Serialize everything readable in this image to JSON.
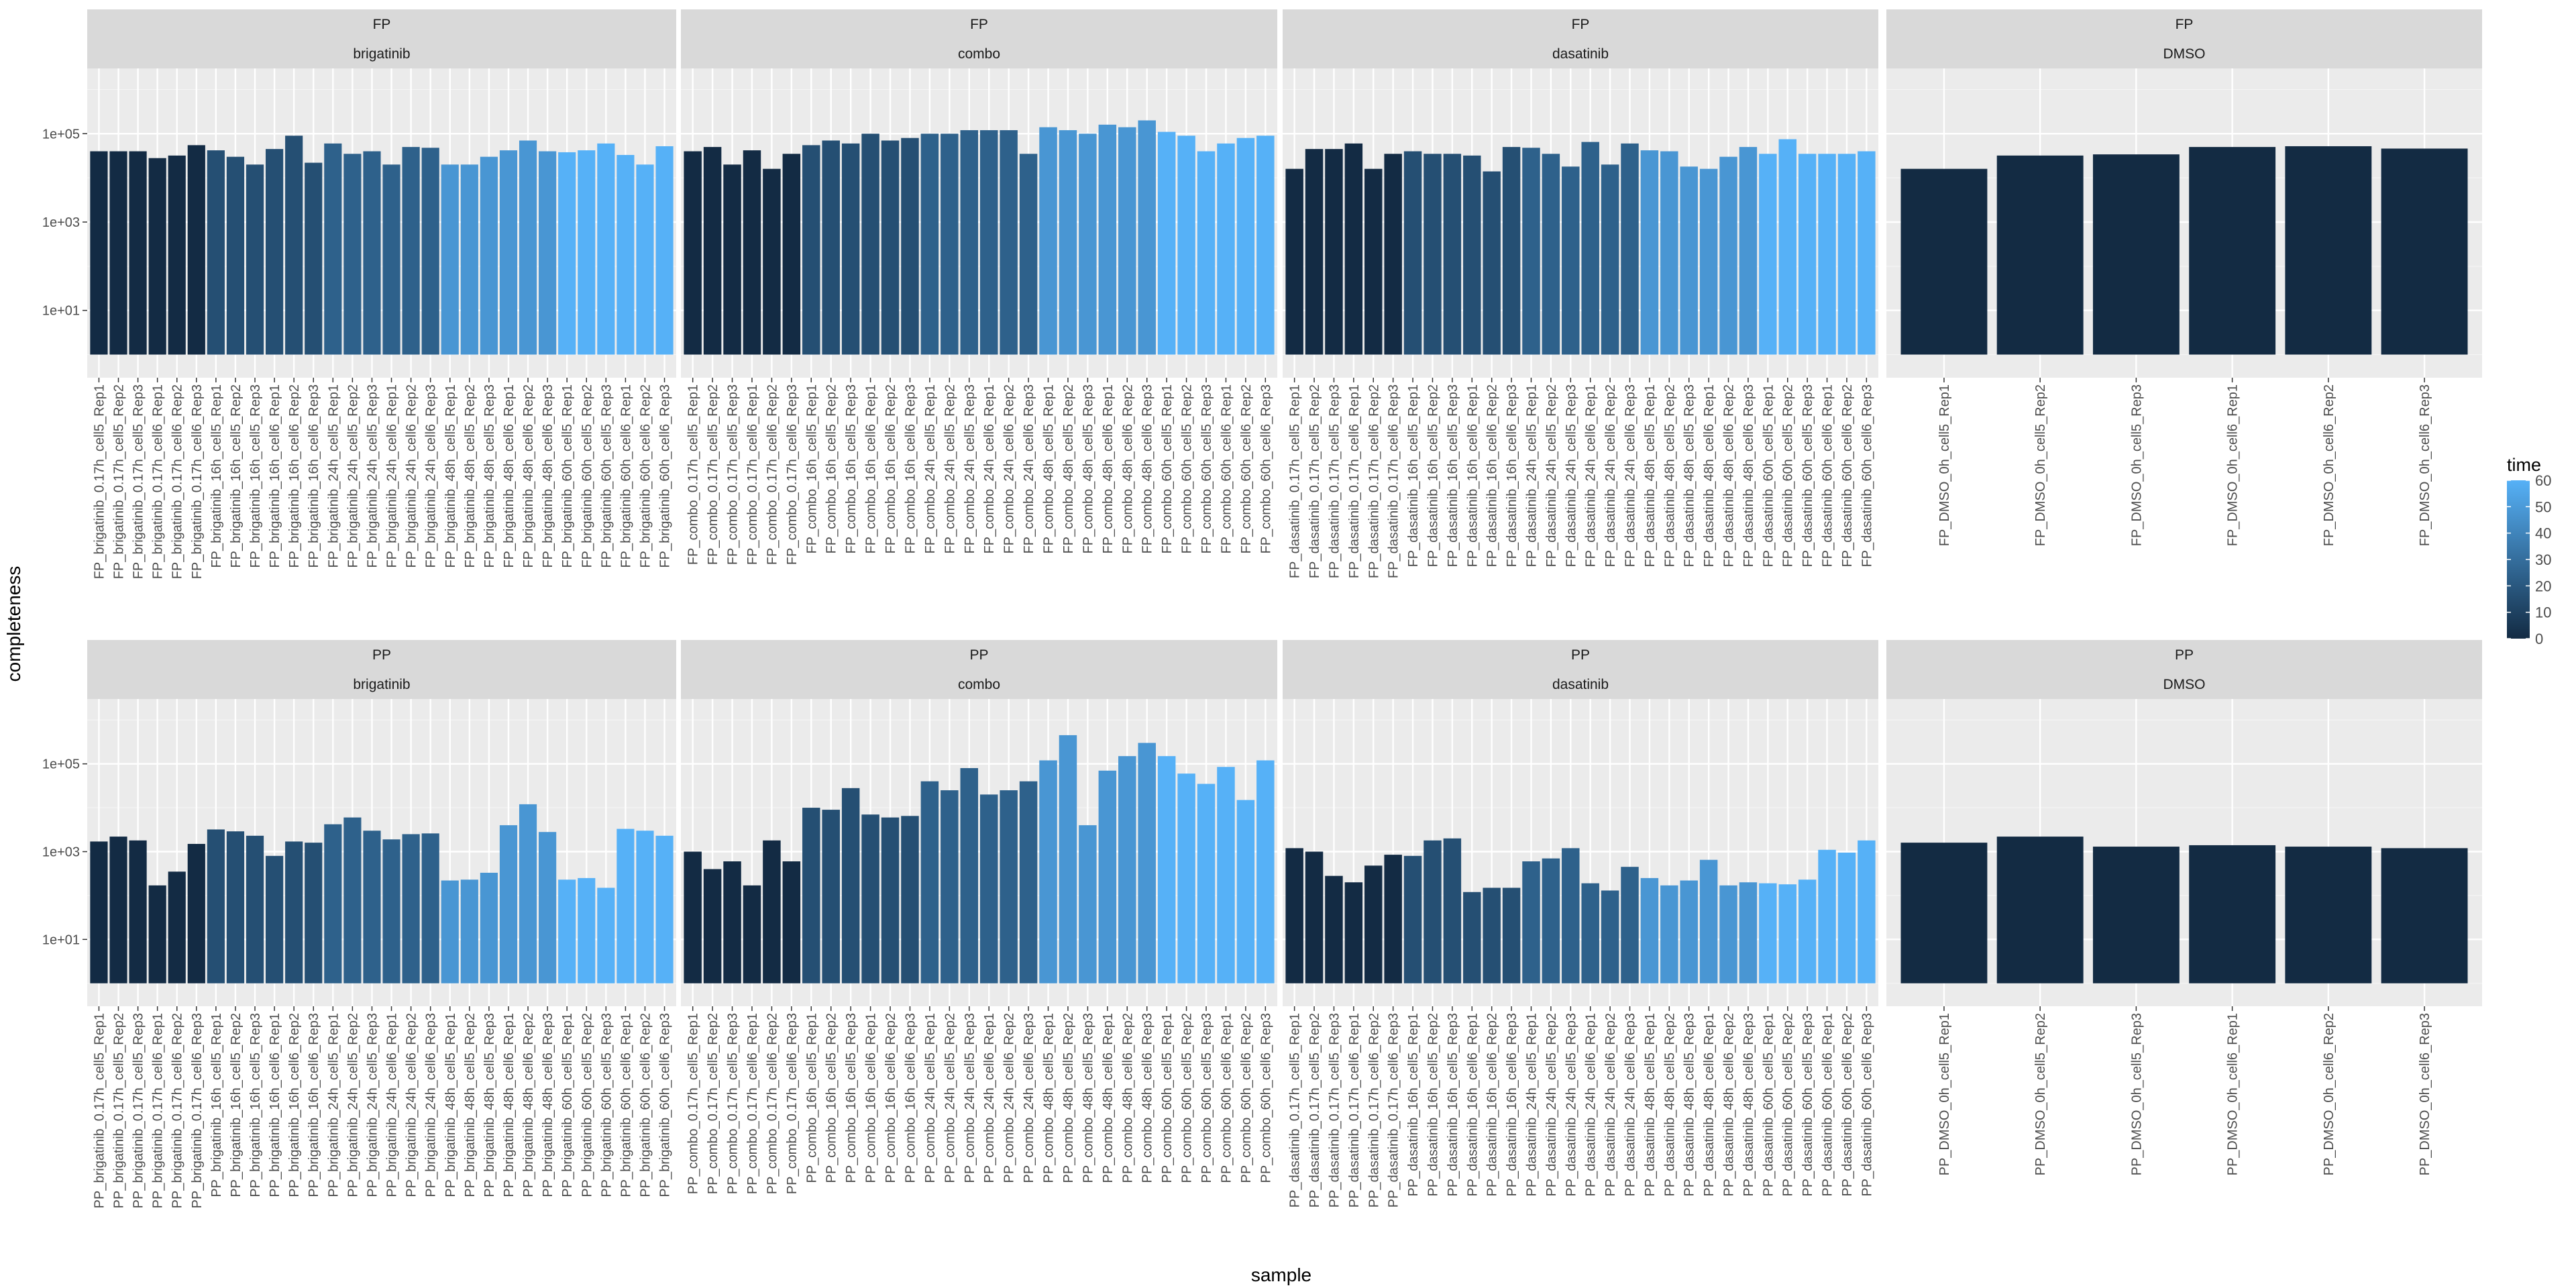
{
  "chart_data": {
    "type": "bar",
    "xlabel": "sample",
    "ylabel": "completeness",
    "y_scale": "log10",
    "ylim": [
      0.3,
      3000000
    ],
    "y_ticks": [
      {
        "value": 10,
        "label": "1e+01"
      },
      {
        "value": 1000,
        "label": "1e+03"
      },
      {
        "value": 100000,
        "label": "1e+05"
      }
    ],
    "legend": {
      "title": "time",
      "labels": [
        "60",
        "50",
        "40",
        "30",
        "20",
        "10",
        "0"
      ],
      "min": 0,
      "max": 60,
      "low_color": "#132B43",
      "high_color": "#56B1F7"
    },
    "facet_rows": [
      "FP",
      "PP"
    ],
    "facet_cols": [
      "brigatinib",
      "combo",
      "dasatinib",
      "DMSO"
    ],
    "panels": [
      {
        "row": "FP",
        "col": "brigatinib",
        "categories": [
          "FP_brigatinib_0.17h_cell5_Rep1",
          "FP_brigatinib_0.17h_cell5_Rep2",
          "FP_brigatinib_0.17h_cell5_Rep3",
          "FP_brigatinib_0.17h_cell6_Rep1",
          "FP_brigatinib_0.17h_cell6_Rep2",
          "FP_brigatinib_0.17h_cell6_Rep3",
          "FP_brigatinib_16h_cell5_Rep1",
          "FP_brigatinib_16h_cell5_Rep2",
          "FP_brigatinib_16h_cell5_Rep3",
          "FP_brigatinib_16h_cell6_Rep1",
          "FP_brigatinib_16h_cell6_Rep2",
          "FP_brigatinib_16h_cell6_Rep3",
          "FP_brigatinib_24h_cell5_Rep1",
          "FP_brigatinib_24h_cell5_Rep2",
          "FP_brigatinib_24h_cell5_Rep3",
          "FP_brigatinib_24h_cell6_Rep1",
          "FP_brigatinib_24h_cell6_Rep2",
          "FP_brigatinib_24h_cell6_Rep3",
          "FP_brigatinib_48h_cell5_Rep1",
          "FP_brigatinib_48h_cell5_Rep2",
          "FP_brigatinib_48h_cell5_Rep3",
          "FP_brigatinib_48h_cell6_Rep1",
          "FP_brigatinib_48h_cell6_Rep2",
          "FP_brigatinib_48h_cell6_Rep3",
          "FP_brigatinib_60h_cell5_Rep1",
          "FP_brigatinib_60h_cell5_Rep2",
          "FP_brigatinib_60h_cell5_Rep3",
          "FP_brigatinib_60h_cell6_Rep1",
          "FP_brigatinib_60h_cell6_Rep2",
          "FP_brigatinib_60h_cell6_Rep3"
        ],
        "times": [
          0.17,
          0.17,
          0.17,
          0.17,
          0.17,
          0.17,
          16,
          16,
          16,
          16,
          16,
          16,
          24,
          24,
          24,
          24,
          24,
          24,
          48,
          48,
          48,
          48,
          48,
          48,
          60,
          60,
          60,
          60,
          60,
          60
        ],
        "values": [
          40000,
          40000,
          40000,
          28000,
          32000,
          55000,
          42000,
          30000,
          20000,
          45000,
          90000,
          22000,
          60000,
          35000,
          40000,
          20000,
          50000,
          48000,
          20000,
          20000,
          30000,
          42000,
          70000,
          40000,
          38000,
          42000,
          60000,
          33000,
          20000,
          52000
        ]
      },
      {
        "row": "FP",
        "col": "combo",
        "categories": [
          "FP_combo_0.17h_cell5_Rep1",
          "FP_combo_0.17h_cell5_Rep2",
          "FP_combo_0.17h_cell5_Rep3",
          "FP_combo_0.17h_cell6_Rep1",
          "FP_combo_0.17h_cell6_Rep2",
          "FP_combo_0.17h_cell6_Rep3",
          "FP_combo_16h_cell5_Rep1",
          "FP_combo_16h_cell5_Rep2",
          "FP_combo_16h_cell5_Rep3",
          "FP_combo_16h_cell6_Rep1",
          "FP_combo_16h_cell6_Rep2",
          "FP_combo_16h_cell6_Rep3",
          "FP_combo_24h_cell5_Rep1",
          "FP_combo_24h_cell5_Rep2",
          "FP_combo_24h_cell5_Rep3",
          "FP_combo_24h_cell6_Rep1",
          "FP_combo_24h_cell6_Rep2",
          "FP_combo_24h_cell6_Rep3",
          "FP_combo_48h_cell5_Rep1",
          "FP_combo_48h_cell5_Rep2",
          "FP_combo_48h_cell5_Rep3",
          "FP_combo_48h_cell6_Rep1",
          "FP_combo_48h_cell6_Rep2",
          "FP_combo_48h_cell6_Rep3",
          "FP_combo_60h_cell5_Rep1",
          "FP_combo_60h_cell5_Rep2",
          "FP_combo_60h_cell5_Rep3",
          "FP_combo_60h_cell6_Rep1",
          "FP_combo_60h_cell6_Rep2",
          "FP_combo_60h_cell6_Rep3"
        ],
        "times": [
          0.17,
          0.17,
          0.17,
          0.17,
          0.17,
          0.17,
          16,
          16,
          16,
          16,
          16,
          16,
          24,
          24,
          24,
          24,
          24,
          24,
          48,
          48,
          48,
          48,
          48,
          48,
          60,
          60,
          60,
          60,
          60,
          60
        ],
        "values": [
          40000,
          50000,
          20000,
          42000,
          16000,
          35000,
          55000,
          70000,
          60000,
          100000,
          70000,
          80000,
          100000,
          100000,
          120000,
          120000,
          120000,
          35000,
          140000,
          120000,
          100000,
          160000,
          140000,
          200000,
          110000,
          90000,
          40000,
          60000,
          80000,
          90000
        ]
      },
      {
        "row": "FP",
        "col": "dasatinib",
        "categories": [
          "FP_dasatinib_0.17h_cell5_Rep1",
          "FP_dasatinib_0.17h_cell5_Rep2",
          "FP_dasatinib_0.17h_cell5_Rep3",
          "FP_dasatinib_0.17h_cell6_Rep1",
          "FP_dasatinib_0.17h_cell6_Rep2",
          "FP_dasatinib_0.17h_cell6_Rep3",
          "FP_dasatinib_16h_cell5_Rep1",
          "FP_dasatinib_16h_cell5_Rep2",
          "FP_dasatinib_16h_cell5_Rep3",
          "FP_dasatinib_16h_cell6_Rep1",
          "FP_dasatinib_16h_cell6_Rep2",
          "FP_dasatinib_16h_cell6_Rep3",
          "FP_dasatinib_24h_cell5_Rep1",
          "FP_dasatinib_24h_cell5_Rep2",
          "FP_dasatinib_24h_cell5_Rep3",
          "FP_dasatinib_24h_cell6_Rep1",
          "FP_dasatinib_24h_cell6_Rep2",
          "FP_dasatinib_24h_cell6_Rep3",
          "FP_dasatinib_48h_cell5_Rep1",
          "FP_dasatinib_48h_cell5_Rep2",
          "FP_dasatinib_48h_cell5_Rep3",
          "FP_dasatinib_48h_cell6_Rep1",
          "FP_dasatinib_48h_cell6_Rep2",
          "FP_dasatinib_48h_cell6_Rep3",
          "FP_dasatinib_60h_cell5_Rep1",
          "FP_dasatinib_60h_cell5_Rep2",
          "FP_dasatinib_60h_cell5_Rep3",
          "FP_dasatinib_60h_cell6_Rep1",
          "FP_dasatinib_60h_cell6_Rep2",
          "FP_dasatinib_60h_cell6_Rep3"
        ],
        "times": [
          0.17,
          0.17,
          0.17,
          0.17,
          0.17,
          0.17,
          16,
          16,
          16,
          16,
          16,
          16,
          24,
          24,
          24,
          24,
          24,
          24,
          48,
          48,
          48,
          48,
          48,
          48,
          60,
          60,
          60,
          60,
          60,
          60
        ],
        "values": [
          16000,
          45000,
          45000,
          60000,
          16000,
          35000,
          40000,
          35000,
          35000,
          32000,
          14000,
          50000,
          48000,
          35000,
          18000,
          65000,
          20000,
          60000,
          42000,
          40000,
          18000,
          16000,
          30000,
          50000,
          35000,
          75000,
          35000,
          35000,
          35000,
          40000
        ]
      },
      {
        "row": "FP",
        "col": "DMSO",
        "categories": [
          "FP_DMSO_0h_cell5_Rep1",
          "FP_DMSO_0h_cell5_Rep2",
          "FP_DMSO_0h_cell5_Rep3",
          "FP_DMSO_0h_cell6_Rep1",
          "FP_DMSO_0h_cell6_Rep2",
          "FP_DMSO_0h_cell6_Rep3"
        ],
        "times": [
          0,
          0,
          0,
          0,
          0,
          0
        ],
        "values": [
          16000,
          32000,
          34000,
          50000,
          52000,
          46000
        ]
      },
      {
        "row": "PP",
        "col": "brigatinib",
        "categories": [
          "PP_brigatinib_0.17h_cell5_Rep1",
          "PP_brigatinib_0.17h_cell5_Rep2",
          "PP_brigatinib_0.17h_cell5_Rep3",
          "PP_brigatinib_0.17h_cell6_Rep1",
          "PP_brigatinib_0.17h_cell6_Rep2",
          "PP_brigatinib_0.17h_cell6_Rep3",
          "PP_brigatinib_16h_cell5_Rep1",
          "PP_brigatinib_16h_cell5_Rep2",
          "PP_brigatinib_16h_cell5_Rep3",
          "PP_brigatinib_16h_cell6_Rep1",
          "PP_brigatinib_16h_cell6_Rep2",
          "PP_brigatinib_16h_cell6_Rep3",
          "PP_brigatinib_24h_cell5_Rep1",
          "PP_brigatinib_24h_cell5_Rep2",
          "PP_brigatinib_24h_cell5_Rep3",
          "PP_brigatinib_24h_cell6_Rep1",
          "PP_brigatinib_24h_cell6_Rep2",
          "PP_brigatinib_24h_cell6_Rep3",
          "PP_brigatinib_48h_cell5_Rep1",
          "PP_brigatinib_48h_cell5_Rep2",
          "PP_brigatinib_48h_cell5_Rep3",
          "PP_brigatinib_48h_cell6_Rep1",
          "PP_brigatinib_48h_cell6_Rep2",
          "PP_brigatinib_48h_cell6_Rep3",
          "PP_brigatinib_60h_cell5_Rep1",
          "PP_brigatinib_60h_cell5_Rep2",
          "PP_brigatinib_60h_cell5_Rep3",
          "PP_brigatinib_60h_cell6_Rep1",
          "PP_brigatinib_60h_cell6_Rep2",
          "PP_brigatinib_60h_cell6_Rep3"
        ],
        "times": [
          0.17,
          0.17,
          0.17,
          0.17,
          0.17,
          0.17,
          16,
          16,
          16,
          16,
          16,
          16,
          24,
          24,
          24,
          24,
          24,
          24,
          48,
          48,
          48,
          48,
          48,
          48,
          60,
          60,
          60,
          60,
          60,
          60
        ],
        "values": [
          1700,
          2200,
          1800,
          170,
          350,
          1500,
          3200,
          2900,
          2300,
          800,
          1700,
          1600,
          4200,
          6000,
          3000,
          1900,
          2500,
          2600,
          220,
          230,
          330,
          4000,
          12000,
          2800,
          230,
          250,
          150,
          3300,
          3000,
          2300
        ]
      },
      {
        "row": "PP",
        "col": "combo",
        "categories": [
          "PP_combo_0.17h_cell5_Rep1",
          "PP_combo_0.17h_cell5_Rep2",
          "PP_combo_0.17h_cell5_Rep3",
          "PP_combo_0.17h_cell6_Rep1",
          "PP_combo_0.17h_cell6_Rep2",
          "PP_combo_0.17h_cell6_Rep3",
          "PP_combo_16h_cell5_Rep1",
          "PP_combo_16h_cell5_Rep2",
          "PP_combo_16h_cell5_Rep3",
          "PP_combo_16h_cell6_Rep1",
          "PP_combo_16h_cell6_Rep2",
          "PP_combo_16h_cell6_Rep3",
          "PP_combo_24h_cell5_Rep1",
          "PP_combo_24h_cell5_Rep2",
          "PP_combo_24h_cell5_Rep3",
          "PP_combo_24h_cell6_Rep1",
          "PP_combo_24h_cell6_Rep2",
          "PP_combo_24h_cell6_Rep3",
          "PP_combo_48h_cell5_Rep1",
          "PP_combo_48h_cell5_Rep2",
          "PP_combo_48h_cell5_Rep3",
          "PP_combo_48h_cell6_Rep1",
          "PP_combo_48h_cell6_Rep2",
          "PP_combo_48h_cell6_Rep3",
          "PP_combo_60h_cell5_Rep1",
          "PP_combo_60h_cell5_Rep2",
          "PP_combo_60h_cell5_Rep3",
          "PP_combo_60h_cell6_Rep1",
          "PP_combo_60h_cell6_Rep2",
          "PP_combo_60h_cell6_Rep3"
        ],
        "times": [
          0.17,
          0.17,
          0.17,
          0.17,
          0.17,
          0.17,
          16,
          16,
          16,
          16,
          16,
          16,
          24,
          24,
          24,
          24,
          24,
          24,
          48,
          48,
          48,
          48,
          48,
          48,
          60,
          60,
          60,
          60,
          60,
          60
        ],
        "values": [
          1000,
          400,
          600,
          170,
          1800,
          600,
          10000,
          9000,
          28000,
          7000,
          6000,
          6500,
          40000,
          25000,
          80000,
          20000,
          25000,
          40000,
          120000,
          450000,
          4000,
          70000,
          150000,
          300000,
          150000,
          60000,
          35000,
          85000,
          15000,
          120000
        ]
      },
      {
        "row": "PP",
        "col": "dasatinib",
        "categories": [
          "PP_dasatinib_0.17h_cell5_Rep1",
          "PP_dasatinib_0.17h_cell5_Rep2",
          "PP_dasatinib_0.17h_cell5_Rep3",
          "PP_dasatinib_0.17h_cell6_Rep1",
          "PP_dasatinib_0.17h_cell6_Rep2",
          "PP_dasatinib_0.17h_cell6_Rep3",
          "PP_dasatinib_16h_cell5_Rep1",
          "PP_dasatinib_16h_cell5_Rep2",
          "PP_dasatinib_16h_cell5_Rep3",
          "PP_dasatinib_16h_cell6_Rep1",
          "PP_dasatinib_16h_cell6_Rep2",
          "PP_dasatinib_16h_cell6_Rep3",
          "PP_dasatinib_24h_cell5_Rep1",
          "PP_dasatinib_24h_cell5_Rep2",
          "PP_dasatinib_24h_cell5_Rep3",
          "PP_dasatinib_24h_cell6_Rep1",
          "PP_dasatinib_24h_cell6_Rep2",
          "PP_dasatinib_24h_cell6_Rep3",
          "PP_dasatinib_48h_cell5_Rep1",
          "PP_dasatinib_48h_cell5_Rep2",
          "PP_dasatinib_48h_cell5_Rep3",
          "PP_dasatinib_48h_cell6_Rep1",
          "PP_dasatinib_48h_cell6_Rep2",
          "PP_dasatinib_48h_cell6_Rep3",
          "PP_dasatinib_60h_cell5_Rep1",
          "PP_dasatinib_60h_cell5_Rep2",
          "PP_dasatinib_60h_cell5_Rep3",
          "PP_dasatinib_60h_cell6_Rep1",
          "PP_dasatinib_60h_cell6_Rep2",
          "PP_dasatinib_60h_cell6_Rep3"
        ],
        "times": [
          0.17,
          0.17,
          0.17,
          0.17,
          0.17,
          0.17,
          16,
          16,
          16,
          16,
          16,
          16,
          24,
          24,
          24,
          24,
          24,
          24,
          48,
          48,
          48,
          48,
          48,
          48,
          60,
          60,
          60,
          60,
          60,
          60
        ],
        "values": [
          1200,
          1000,
          280,
          200,
          480,
          850,
          800,
          1800,
          2000,
          120,
          150,
          150,
          600,
          700,
          1200,
          190,
          130,
          450,
          250,
          170,
          220,
          650,
          170,
          200,
          190,
          180,
          230,
          1100,
          950,
          1800
        ]
      },
      {
        "row": "PP",
        "col": "DMSO",
        "categories": [
          "PP_DMSO_0h_cell5_Rep1",
          "PP_DMSO_0h_cell5_Rep2",
          "PP_DMSO_0h_cell5_Rep3",
          "PP_DMSO_0h_cell6_Rep1",
          "PP_DMSO_0h_cell6_Rep2",
          "PP_DMSO_0h_cell6_Rep3"
        ],
        "times": [
          0,
          0,
          0,
          0,
          0,
          0
        ],
        "values": [
          1600,
          2200,
          1300,
          1400,
          1300,
          1200
        ]
      }
    ]
  }
}
